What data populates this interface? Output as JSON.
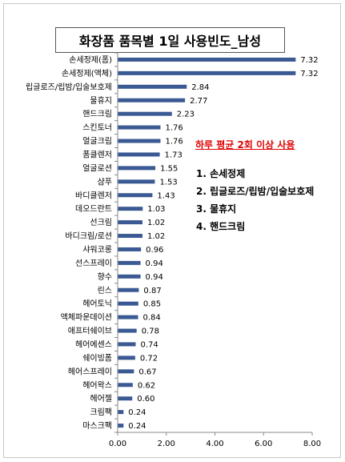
{
  "chart_data": {
    "type": "bar",
    "orientation": "horizontal",
    "title": "화장품 품목별 1일 사용빈도_남성",
    "categories": [
      "손세정제(폼)",
      "손세정제(액체)",
      "립글로즈/립밤/입술보호제",
      "물휴지",
      "핸드크림",
      "스킨토너",
      "얼굴크림",
      "폼클렌저",
      "얼굴로션",
      "샴푸",
      "바디클렌저",
      "데오드란트",
      "선크림",
      "바디크림/로션",
      "샤워코롱",
      "선스프레이",
      "향수",
      "린스",
      "헤어토닉",
      "액체파운데이션",
      "애프터쉐이브",
      "헤어에센스",
      "쉐이빙폼",
      "헤어스프레이",
      "헤어왁스",
      "헤어젤",
      "크림팩",
      "마스크팩"
    ],
    "values": [
      7.32,
      7.32,
      2.84,
      2.77,
      2.23,
      1.76,
      1.76,
      1.73,
      1.55,
      1.53,
      1.43,
      1.03,
      1.02,
      1.02,
      0.96,
      0.94,
      0.94,
      0.87,
      0.85,
      0.84,
      0.78,
      0.74,
      0.72,
      0.67,
      0.62,
      0.6,
      0.24,
      0.24
    ],
    "value_labels": [
      "7.32",
      "7.32",
      "2.84",
      "2.77",
      "2.23",
      "1.76",
      "1.76",
      "1.73",
      "1.55",
      "1.53",
      "1.43",
      "1.03",
      "1.02",
      "1.02",
      "0.96",
      "0.94",
      "0.94",
      "0.87",
      "0.85",
      "0.84",
      "0.78",
      "0.74",
      "0.72",
      "0.67",
      "0.62",
      "0.60",
      "0.24",
      "0.24"
    ],
    "xlim": [
      0,
      8
    ],
    "xticks": [
      "0.00",
      "2.00",
      "4.00",
      "6.00",
      "8.00"
    ],
    "bar_color": "#3b5a94",
    "grid": false,
    "annotation": {
      "heading": "하루 평균 2회 이상 사용",
      "heading_color": "#e00000",
      "items": [
        "1. 손세정제",
        "2. 립글로즈/립밤/입술보호제",
        "3. 물휴지",
        "4. 핸드크림"
      ]
    }
  }
}
